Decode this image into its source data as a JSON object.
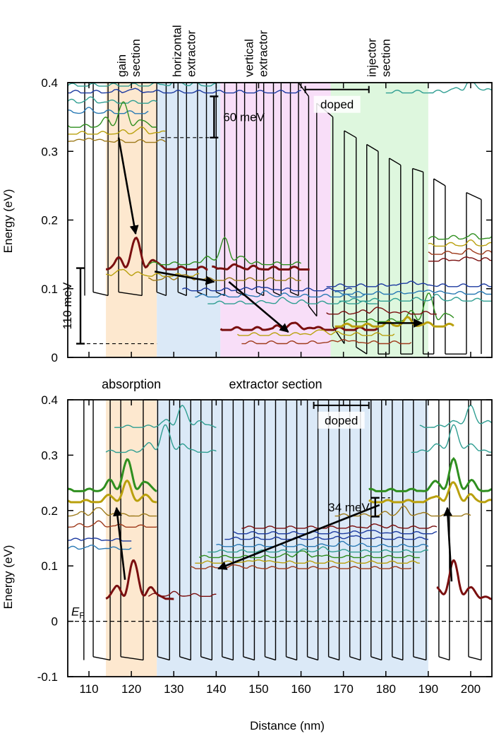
{
  "chart_data": [
    {
      "type": "line",
      "panel": "top",
      "title": "",
      "xlabel": "",
      "ylabel": "Energy (eV)",
      "xlim": [
        105,
        205
      ],
      "ylim": [
        0,
        0.4
      ],
      "yticks": [
        0,
        0.1,
        0.2,
        0.3,
        0.4
      ],
      "ytick_labels": [
        "0",
        "0.1",
        "0.2",
        "0.3",
        "0.4"
      ],
      "section_labels": [
        {
          "text": "gain section",
          "lines": [
            "gain",
            "section"
          ],
          "x": 120
        },
        {
          "text": "horizontal extractor",
          "lines": [
            "horizontal",
            "extractor"
          ],
          "x": 133
        },
        {
          "text": "vertical extractor",
          "lines": [
            "vertical",
            "extractor"
          ],
          "x": 150
        },
        {
          "text": "injector section",
          "lines": [
            "injector",
            "section"
          ],
          "x": 179
        }
      ],
      "regions": [
        {
          "x0": 114,
          "x1": 126,
          "color": "#fde8cf"
        },
        {
          "x0": 126,
          "x1": 141,
          "color": "#dbe9f7"
        },
        {
          "x0": 141,
          "x1": 167,
          "color": "#f8def8"
        },
        {
          "x0": 167,
          "x1": 190,
          "color": "#def7de"
        }
      ],
      "annotations": [
        {
          "text": "60 meV",
          "x": 139.5,
          "y_top": 0.38,
          "y_bottom": 0.32
        },
        {
          "text": "110 meV",
          "x": 108,
          "y_top": 0.13,
          "y_bottom": 0.02
        },
        {
          "text": "doped",
          "x0": 161,
          "x1": 176,
          "y": 0.39
        }
      ],
      "arrows": [
        {
          "from": [
            117,
            0.32
          ],
          "to": [
            121,
            0.18
          ]
        },
        {
          "from": [
            125.5,
            0.125
          ],
          "to": [
            139.5,
            0.11
          ]
        },
        {
          "from": [
            143,
            0.11
          ],
          "to": [
            157,
            0.037
          ]
        },
        {
          "from": [
            178,
            0.05
          ],
          "to": [
            188.5,
            0.05
          ]
        }
      ],
      "band_edge": {
        "barrier_x": [
          109,
          111,
          114.5,
          117,
          122.5,
          126,
          128.2,
          131,
          133,
          135.6,
          137.7,
          140,
          142,
          144.8,
          146.7,
          149.5,
          151.2,
          153.5,
          155.3,
          157.5,
          159.4,
          161.8,
          163.7,
          167.5,
          170.2,
          173,
          175.5,
          178.2,
          180.8,
          183.5,
          186.3,
          188.8,
          191.3,
          194,
          199,
          202.5
        ],
        "top_y": [
          0.4,
          0.4,
          0.4,
          0.4,
          0.4,
          0.4,
          0.4,
          0.4,
          0.4,
          0.4,
          0.4,
          0.4,
          0.4,
          0.4,
          0.4,
          0.4,
          0.4,
          0.4,
          0.4,
          0.4,
          0.4,
          0.38,
          0.37,
          0.35,
          0.33,
          0.32,
          0.31,
          0.3,
          0.29,
          0.28,
          0.275,
          0.27,
          0.26,
          0.25,
          0.24,
          0.23
        ]
      },
      "states": [
        {
          "color": "#7a0f0f",
          "thick": true,
          "x0": 114,
          "x1": 138,
          "base": 0.128,
          "amp": 0.045,
          "peak_x": 121
        },
        {
          "color": "#b9a00d",
          "x0": 114,
          "x1": 136,
          "base": 0.118,
          "amp": 0.01,
          "peak_x": 118
        },
        {
          "color": "#2f8f1f",
          "x0": 124,
          "x1": 160,
          "base": 0.135,
          "amp": 0.04,
          "peak_x": 142
        },
        {
          "color": "#7a0f0f",
          "thick": true,
          "x0": 139,
          "x1": 162,
          "base": 0.128,
          "amp": 0.005,
          "peak_x": 145
        },
        {
          "color": "#9e7b1b",
          "x0": 124,
          "x1": 160,
          "base": 0.112,
          "amp": 0.008,
          "peak_x": 132
        },
        {
          "color": "#1c3aa0",
          "x0": 132,
          "x1": 172,
          "base": 0.097,
          "amp": 0.006,
          "peak_x": 150
        },
        {
          "color": "#2a7ab5",
          "x0": 135,
          "x1": 175,
          "base": 0.088,
          "amp": 0.006,
          "peak_x": 152
        },
        {
          "color": "#2f9e92",
          "x0": 138,
          "x1": 178,
          "base": 0.078,
          "amp": 0.006,
          "peak_x": 156
        },
        {
          "color": "#7a0f0f",
          "thick": true,
          "x0": 141,
          "x1": 178,
          "base": 0.04,
          "amp": 0.01,
          "peak_x": 158
        },
        {
          "color": "#b9a00d",
          "x0": 145,
          "x1": 182,
          "base": 0.032,
          "amp": 0.008,
          "peak_x": 165
        },
        {
          "color": "#9e3a1b",
          "x0": 146,
          "x1": 186,
          "base": 0.02,
          "amp": 0.006,
          "peak_x": 170
        },
        {
          "color": "#2f8f1f",
          "x0": 170,
          "x1": 196,
          "base": 0.052,
          "amp": 0.04,
          "peak_x": 190
        },
        {
          "color": "#b9a00d",
          "thick": true,
          "x0": 168,
          "x1": 196,
          "base": 0.045,
          "amp": 0.01,
          "peak_x": 185
        },
        {
          "color": "#7a0f0f",
          "x0": 166,
          "x1": 192,
          "base": 0.063,
          "amp": 0.01,
          "peak_x": 178
        },
        {
          "color": "#1c3aa0",
          "x0": 166,
          "x1": 205,
          "base": 0.103,
          "amp": 0.008,
          "peak_x": 186
        },
        {
          "color": "#2a7ab5",
          "x0": 168,
          "x1": 205,
          "base": 0.092,
          "amp": 0.006,
          "peak_x": 190
        },
        {
          "color": "#2f9e92",
          "x0": 169,
          "x1": 205,
          "base": 0.082,
          "amp": 0.006,
          "peak_x": 192
        },
        {
          "color": "#2f8f1f",
          "x0": 190,
          "x1": 205,
          "base": 0.172,
          "amp": 0.005,
          "peak_x": 200
        },
        {
          "color": "#b9a00d",
          "x0": 190,
          "x1": 205,
          "base": 0.162,
          "amp": 0.005,
          "peak_x": 200
        },
        {
          "color": "#9e3a1b",
          "x0": 190,
          "x1": 205,
          "base": 0.15,
          "amp": 0.005,
          "peak_x": 200
        },
        {
          "color": "#7a0f0f",
          "x0": 190,
          "x1": 205,
          "base": 0.14,
          "amp": 0.005,
          "peak_x": 200
        },
        {
          "color": "#2f9e92",
          "x0": 105,
          "x1": 126,
          "base": 0.37,
          "amp": 0.006,
          "peak_x": 110
        },
        {
          "color": "#2a7ab5",
          "x0": 105,
          "x1": 124,
          "base": 0.355,
          "amp": 0.005,
          "peak_x": 110
        },
        {
          "color": "#2f8f1f",
          "x0": 105,
          "x1": 126,
          "base": 0.335,
          "amp": 0.035,
          "peak_x": 118
        },
        {
          "color": "#b9a00d",
          "x0": 105,
          "x1": 128,
          "base": 0.325,
          "amp": 0.008,
          "peak_x": 122
        },
        {
          "color": "#9e7b1b",
          "x0": 105,
          "x1": 128,
          "base": 0.313,
          "amp": 0.006,
          "peak_x": 110
        },
        {
          "color": "#1c3aa0",
          "x0": 105,
          "x1": 160,
          "base": 0.385,
          "amp": 0.005,
          "peak_x": 120
        },
        {
          "color": "#2f9e92",
          "x0": 105,
          "x1": 140,
          "base": 0.395,
          "amp": 0.008,
          "peak_x": 131
        },
        {
          "color": "#2f9e92",
          "x0": 180,
          "x1": 205,
          "base": 0.385,
          "amp": 0.02,
          "peak_x": 200
        }
      ]
    },
    {
      "type": "line",
      "panel": "bottom",
      "title": "",
      "xlabel": "Distance (nm)",
      "ylabel": "Energy (eV)",
      "xlim": [
        105,
        205
      ],
      "ylim": [
        -0.1,
        0.4
      ],
      "xticks": [
        110,
        120,
        130,
        140,
        150,
        160,
        170,
        180,
        190,
        200
      ],
      "xtick_labels": [
        "110",
        "120",
        "130",
        "140",
        "150",
        "160",
        "170",
        "180",
        "190",
        "200"
      ],
      "yticks": [
        -0.1,
        0,
        0.1,
        0.2,
        0.3,
        0.4
      ],
      "ytick_labels": [
        "-0.1",
        "0",
        "0.1",
        "0.2",
        "0.3",
        "0.4"
      ],
      "section_labels": [
        {
          "text": "absorption",
          "x": 120
        },
        {
          "text": "extractor section",
          "x": 154
        }
      ],
      "regions": [
        {
          "x0": 114,
          "x1": 126,
          "color": "#fde8cf"
        },
        {
          "x0": 126,
          "x1": 190,
          "color": "#dbe9f7"
        }
      ],
      "fermi_label": "E",
      "fermi_sub": "F",
      "fermi_level": 0,
      "annotations": [
        {
          "text": "34 meV",
          "x": 177.5,
          "y_top": 0.223,
          "y_bottom": 0.189
        },
        {
          "text": "doped",
          "x0": 163,
          "x1": 176,
          "y": 0.39
        }
      ],
      "arrows": [
        {
          "from": [
            118.5,
            0.075
          ],
          "to": [
            116.5,
            0.205
          ]
        },
        {
          "from": [
            178.5,
            0.21
          ],
          "to": [
            140.5,
            0.095
          ]
        },
        {
          "from": [
            195.5,
            0.072
          ],
          "to": [
            194.5,
            0.205
          ]
        }
      ],
      "band_edge": {
        "barrier_x": [
          108.8,
          111,
          115,
          117.5,
          122.8,
          126.2,
          129,
          131.4,
          134,
          136.4,
          139,
          141.4,
          144,
          146.4,
          149,
          151.5,
          154,
          156.5,
          159,
          161.5,
          164,
          166.5,
          169,
          171.5,
          174,
          176.5,
          179,
          181.5,
          184,
          186.5,
          189.5,
          192.5,
          195,
          199.5,
          202.5
        ],
        "top_y": [
          0.4,
          0.4,
          0.4,
          0.4,
          0.4,
          0.4,
          0.4,
          0.4,
          0.4,
          0.4,
          0.4,
          0.4,
          0.4,
          0.4,
          0.4,
          0.4,
          0.4,
          0.4,
          0.4,
          0.4,
          0.4,
          0.4,
          0.4,
          0.4,
          0.4,
          0.4,
          0.4,
          0.4,
          0.4,
          0.4,
          0.4,
          0.4,
          0.4,
          0.4,
          0.4
        ],
        "bottom_y": -0.07
      },
      "states": [
        {
          "color": "#7a0f0f",
          "thick": true,
          "x0": 114,
          "x1": 130,
          "base": 0.04,
          "amp": 0.07,
          "peak_x": 120.5
        },
        {
          "color": "#7a0f0f",
          "thick": true,
          "x0": 192,
          "x1": 205,
          "base": 0.04,
          "amp": 0.07,
          "peak_x": 196
        },
        {
          "color": "#7a0f0f",
          "x0": 124,
          "x1": 140,
          "base": 0.045,
          "amp": 0.005,
          "peak_x": 130
        },
        {
          "color": "#2f8f1f",
          "thick": true,
          "x0": 105,
          "x1": 126,
          "base": 0.235,
          "amp": 0.055,
          "peak_x": 119
        },
        {
          "color": "#b9a00d",
          "thick": true,
          "x0": 105,
          "x1": 126,
          "base": 0.215,
          "amp": 0.035,
          "peak_x": 119
        },
        {
          "color": "#9e7b1b",
          "x0": 105,
          "x1": 126,
          "base": 0.19,
          "amp": 0.015,
          "peak_x": 112
        },
        {
          "color": "#9e3a1b",
          "x0": 105,
          "x1": 126,
          "base": 0.17,
          "amp": 0.008,
          "peak_x": 112
        },
        {
          "color": "#1c3aa0",
          "x0": 105,
          "x1": 120,
          "base": 0.145,
          "amp": 0.005,
          "peak_x": 110
        },
        {
          "color": "#2a7ab5",
          "x0": 105,
          "x1": 120,
          "base": 0.13,
          "amp": 0.005,
          "peak_x": 110
        },
        {
          "color": "#2f9e92",
          "x0": 114,
          "x1": 140,
          "base": 0.305,
          "amp": 0.05,
          "peak_x": 128
        },
        {
          "color": "#2f9e92",
          "x0": 116,
          "x1": 140,
          "base": 0.35,
          "amp": 0.04,
          "peak_x": 132
        },
        {
          "color": "#2f8f1f",
          "thick": true,
          "x0": 176,
          "x1": 205,
          "base": 0.235,
          "amp": 0.055,
          "peak_x": 196
        },
        {
          "color": "#b9a00d",
          "thick": true,
          "x0": 176,
          "x1": 205,
          "base": 0.215,
          "amp": 0.035,
          "peak_x": 196
        },
        {
          "color": "#9e7b1b",
          "x0": 168,
          "x1": 200,
          "base": 0.19,
          "amp": 0.015,
          "peak_x": 184
        },
        {
          "color": "#2f9e92",
          "x0": 186,
          "x1": 205,
          "base": 0.305,
          "amp": 0.05,
          "peak_x": 196
        },
        {
          "color": "#2f9e92",
          "x0": 188,
          "x1": 205,
          "base": 0.35,
          "amp": 0.04,
          "peak_x": 200
        },
        {
          "color": "#9e3a1b",
          "x0": 134,
          "x1": 186,
          "base": 0.095,
          "amp": 0.006,
          "peak_x": 145
        },
        {
          "color": "#b9a00d",
          "x0": 135,
          "x1": 188,
          "base": 0.105,
          "amp": 0.006,
          "peak_x": 150
        },
        {
          "color": "#2f8f1f",
          "x0": 136,
          "x1": 188,
          "base": 0.115,
          "amp": 0.012,
          "peak_x": 160
        },
        {
          "color": "#2f9e92",
          "x0": 138,
          "x1": 190,
          "base": 0.125,
          "amp": 0.006,
          "peak_x": 165
        },
        {
          "color": "#2a7ab5",
          "x0": 140,
          "x1": 190,
          "base": 0.135,
          "amp": 0.006,
          "peak_x": 170
        },
        {
          "color": "#1c3aa0",
          "x0": 142,
          "x1": 190,
          "base": 0.148,
          "amp": 0.006,
          "peak_x": 172
        },
        {
          "color": "#1c3aa0",
          "x0": 144,
          "x1": 192,
          "base": 0.158,
          "amp": 0.006,
          "peak_x": 176
        },
        {
          "color": "#7a0f0f",
          "x0": 146,
          "x1": 192,
          "base": 0.168,
          "amp": 0.006,
          "peak_x": 178
        }
      ]
    }
  ]
}
